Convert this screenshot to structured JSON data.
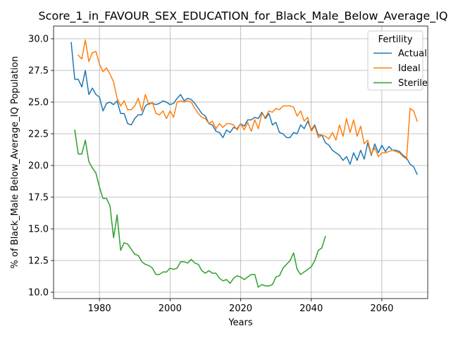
{
  "chart_data": {
    "type": "line",
    "title": "Score_1_in_FAVOUR_SEX_EDUCATION_for_Black_Male_Below_Average_IQ",
    "xlabel": "Years",
    "ylabel": "% of Black_Male Below_Average_IQ Population",
    "xlim": [
      1967,
      2073
    ],
    "ylim": [
      9.5,
      31.0
    ],
    "xticks": [
      1980,
      2000,
      2020,
      2040,
      2060
    ],
    "yticks": [
      10.0,
      12.5,
      15.0,
      17.5,
      20.0,
      22.5,
      25.0,
      27.5,
      30.0
    ],
    "xtick_labels": [
      "1980",
      "2000",
      "2020",
      "2040",
      "2060"
    ],
    "ytick_labels": [
      "10.0",
      "12.5",
      "15.0",
      "17.5",
      "20.0",
      "22.5",
      "25.0",
      "27.5",
      "30.0"
    ],
    "grid": true,
    "legend": {
      "title": "Fertility",
      "position": "top-right"
    },
    "series": [
      {
        "name": "Actual",
        "color": "#1f77b4",
        "x": [
          1972,
          1973,
          1974,
          1975,
          1976,
          1977,
          1978,
          1979,
          1980,
          1981,
          1982,
          1983,
          1984,
          1985,
          1986,
          1987,
          1988,
          1989,
          1990,
          1991,
          1992,
          1993,
          1994,
          1995,
          1996,
          1997,
          1998,
          1999,
          2000,
          2001,
          2002,
          2003,
          2004,
          2005,
          2006,
          2007,
          2008,
          2009,
          2010,
          2011,
          2012,
          2013,
          2014,
          2015,
          2016,
          2017,
          2018,
          2019,
          2020,
          2021,
          2022,
          2023,
          2024,
          2025,
          2026,
          2027,
          2028,
          2029,
          2030,
          2031,
          2032,
          2033,
          2034,
          2035,
          2036,
          2037,
          2038,
          2039,
          2040,
          2041,
          2042,
          2043,
          2044,
          2045,
          2046,
          2047,
          2048,
          2049,
          2050,
          2051,
          2052,
          2053,
          2054,
          2055,
          2056,
          2057,
          2058,
          2059,
          2060,
          2061,
          2062,
          2063,
          2064,
          2065,
          2066,
          2067,
          2068,
          2069,
          2070
        ],
        "y": [
          29.7,
          26.8,
          26.8,
          26.2,
          27.5,
          25.6,
          26.1,
          25.6,
          25.4,
          24.3,
          24.9,
          25.0,
          24.8,
          25.1,
          24.1,
          24.1,
          23.3,
          23.2,
          23.7,
          24.0,
          24.0,
          24.7,
          24.9,
          24.9,
          24.8,
          24.9,
          25.1,
          25.0,
          24.8,
          24.9,
          25.3,
          25.6,
          25.1,
          25.3,
          25.2,
          24.9,
          24.5,
          24.1,
          23.9,
          23.3,
          23.2,
          22.7,
          22.6,
          22.2,
          22.8,
          22.6,
          23.0,
          22.9,
          23.3,
          23.1,
          23.6,
          23.6,
          23.8,
          23.7,
          24.2,
          23.7,
          24.1,
          23.2,
          23.4,
          22.6,
          22.5,
          22.2,
          22.2,
          22.6,
          22.5,
          23.2,
          22.9,
          23.5,
          22.8,
          23.2,
          22.4,
          22.4,
          21.8,
          21.6,
          21.2,
          21.0,
          20.8,
          20.4,
          20.7,
          20.1,
          21.0,
          20.4,
          21.2,
          20.5,
          21.8,
          20.8,
          21.7,
          21.0,
          21.6,
          21.1,
          21.5,
          21.2,
          21.2,
          21.1,
          20.8,
          20.6,
          20.1,
          19.9,
          19.3
        ]
      },
      {
        "name": "Ideal",
        "color": "#ff7f0e",
        "x": [
          1974,
          1975,
          1976,
          1977,
          1978,
          1979,
          1980,
          1981,
          1982,
          1983,
          1984,
          1985,
          1986,
          1987,
          1988,
          1989,
          1990,
          1991,
          1992,
          1993,
          1994,
          1995,
          1996,
          1997,
          1998,
          1999,
          2000,
          2001,
          2002,
          2003,
          2004,
          2005,
          2006,
          2007,
          2008,
          2009,
          2010,
          2011,
          2012,
          2013,
          2014,
          2015,
          2016,
          2017,
          2018,
          2019,
          2020,
          2021,
          2022,
          2023,
          2024,
          2025,
          2026,
          2027,
          2028,
          2029,
          2030,
          2031,
          2032,
          2033,
          2034,
          2035,
          2036,
          2037,
          2038,
          2039,
          2040,
          2041,
          2042,
          2043,
          2044,
          2045,
          2046,
          2047,
          2048,
          2049,
          2050,
          2051,
          2052,
          2053,
          2054,
          2055,
          2056,
          2057,
          2058,
          2059,
          2060,
          2061,
          2062,
          2063,
          2064,
          2065,
          2066,
          2067,
          2068,
          2069,
          2070
        ],
        "y": [
          28.7,
          28.4,
          29.9,
          28.2,
          28.9,
          29.0,
          28.0,
          27.4,
          27.7,
          27.2,
          26.6,
          25.3,
          24.7,
          25.1,
          24.4,
          24.4,
          24.7,
          25.3,
          24.3,
          25.6,
          24.8,
          25.0,
          24.1,
          24.0,
          24.3,
          23.7,
          24.3,
          23.8,
          25.0,
          25.1,
          25.0,
          25.1,
          25.0,
          24.5,
          24.1,
          23.8,
          23.7,
          23.3,
          23.5,
          22.9,
          23.3,
          23.0,
          23.3,
          23.3,
          23.2,
          22.8,
          23.3,
          22.8,
          23.4,
          22.7,
          23.6,
          22.9,
          24.1,
          23.8,
          24.3,
          24.2,
          24.5,
          24.4,
          24.7,
          24.7,
          24.7,
          24.6,
          23.9,
          24.3,
          23.5,
          23.8,
          22.7,
          23.1,
          22.2,
          22.4,
          22.3,
          22.1,
          22.6,
          22.0,
          23.2,
          22.3,
          23.7,
          22.6,
          23.6,
          22.3,
          23.1,
          21.7,
          22.0,
          20.9,
          21.4,
          20.7,
          21.0,
          21.0,
          21.1,
          21.2,
          21.1,
          21.0,
          20.7,
          20.5,
          24.5,
          24.3,
          23.5
        ]
      },
      {
        "name": "Sterile",
        "color": "#2ca02c",
        "x": [
          1973,
          1974,
          1975,
          1976,
          1977,
          1978,
          1979,
          1980,
          1981,
          1982,
          1983,
          1984,
          1985,
          1986,
          1987,
          1988,
          1989,
          1990,
          1991,
          1992,
          1993,
          1994,
          1995,
          1996,
          1997,
          1998,
          1999,
          2000,
          2001,
          2002,
          2003,
          2004,
          2005,
          2006,
          2007,
          2008,
          2009,
          2010,
          2011,
          2012,
          2013,
          2014,
          2015,
          2016,
          2017,
          2018,
          2019,
          2020,
          2021,
          2022,
          2023,
          2024,
          2025,
          2026,
          2027,
          2028,
          2029,
          2030,
          2031,
          2032,
          2033,
          2034,
          2035,
          2036,
          2037,
          2038,
          2039,
          2040,
          2041,
          2042,
          2043,
          2044
        ],
        "y": [
          22.8,
          20.9,
          20.9,
          22.0,
          20.3,
          19.8,
          19.4,
          18.3,
          17.4,
          17.4,
          16.8,
          14.3,
          16.1,
          13.3,
          13.9,
          13.8,
          13.4,
          13.0,
          12.9,
          12.4,
          12.2,
          12.1,
          11.9,
          11.4,
          11.4,
          11.6,
          11.6,
          11.9,
          11.8,
          11.9,
          12.4,
          12.4,
          12.3,
          12.6,
          12.3,
          12.2,
          11.7,
          11.5,
          11.7,
          11.5,
          11.5,
          11.1,
          10.9,
          11.0,
          10.7,
          11.1,
          11.3,
          11.2,
          11.0,
          11.2,
          11.4,
          11.4,
          10.4,
          10.6,
          10.5,
          10.5,
          10.6,
          11.2,
          11.3,
          11.9,
          12.2,
          12.5,
          13.1,
          11.8,
          11.4,
          11.6,
          11.8,
          12.0,
          12.5,
          13.3,
          13.5,
          14.4
        ]
      }
    ]
  }
}
